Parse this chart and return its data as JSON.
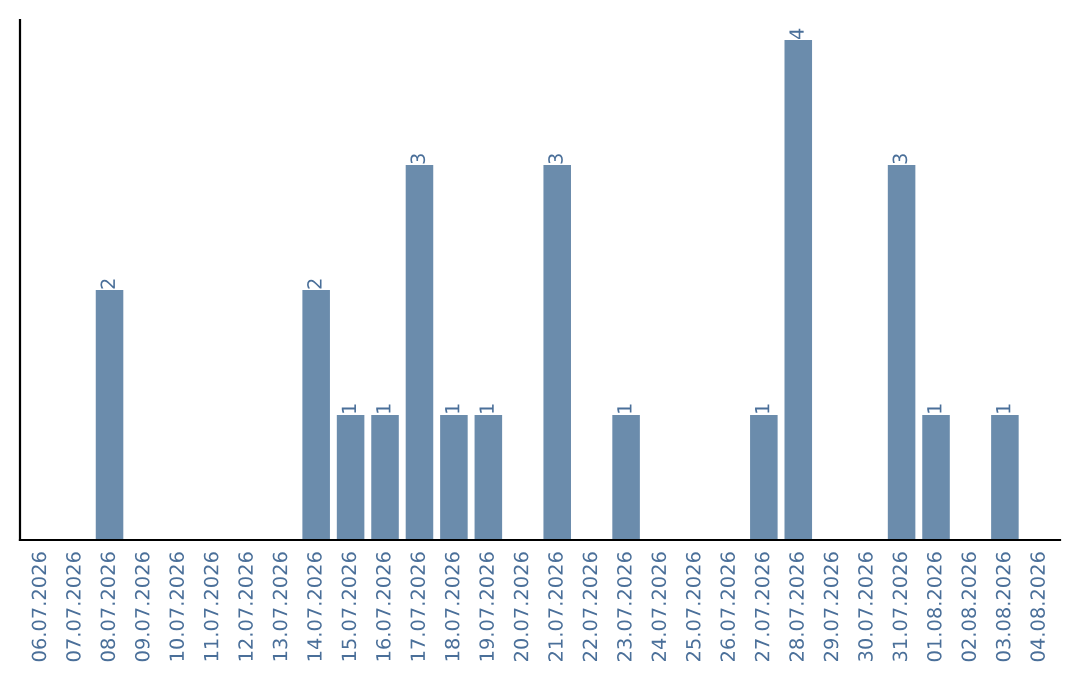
{
  "chart_data": {
    "type": "bar",
    "categories": [
      "06.07.2026",
      "07.07.2026",
      "08.07.2026",
      "09.07.2026",
      "10.07.2026",
      "11.07.2026",
      "12.07.2026",
      "13.07.2026",
      "14.07.2026",
      "15.07.2026",
      "16.07.2026",
      "17.07.2026",
      "18.07.2026",
      "19.07.2026",
      "20.07.2026",
      "21.07.2026",
      "22.07.2026",
      "23.07.2026",
      "24.07.2026",
      "25.07.2026",
      "26.07.2026",
      "27.07.2026",
      "28.07.2026",
      "29.07.2026",
      "30.07.2026",
      "31.07.2026",
      "01.08.2026",
      "02.08.2026",
      "03.08.2026",
      "04.08.2026"
    ],
    "values": [
      0,
      0,
      2,
      0,
      0,
      0,
      0,
      0,
      2,
      1,
      1,
      3,
      1,
      1,
      0,
      3,
      0,
      1,
      0,
      0,
      0,
      1,
      4,
      0,
      0,
      3,
      1,
      0,
      1,
      0
    ],
    "value_labels": [
      null,
      null,
      "2",
      null,
      null,
      null,
      null,
      null,
      "2",
      "1",
      "1",
      "3",
      "1",
      "1",
      null,
      "3",
      null,
      "1",
      null,
      null,
      null,
      "1",
      "4",
      null,
      null,
      "3",
      "1",
      null,
      "1",
      null
    ],
    "color": "#6b8cac",
    "grid": false,
    "legend": false
  }
}
